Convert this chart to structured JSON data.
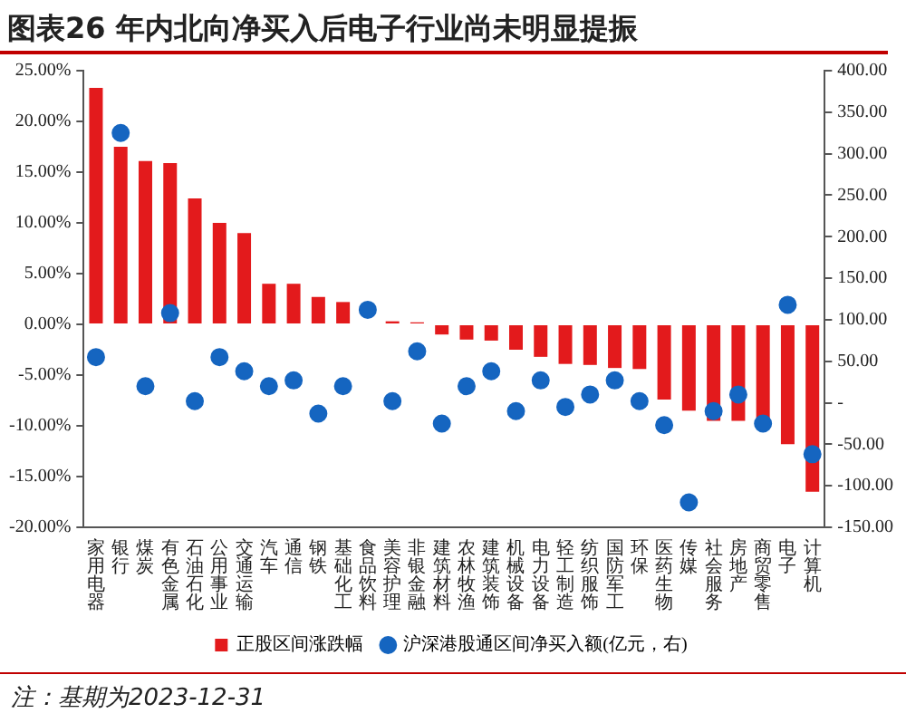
{
  "chart_data": {
    "type": "bar",
    "title": "图表26  年内北向净买入后电子行业尚未明显提振",
    "categories": [
      "家用电器",
      "银行",
      "煤炭",
      "有色金属",
      "石油石化",
      "公用事业",
      "交通运输",
      "汽车",
      "通信",
      "钢铁",
      "基础化工",
      "食品饮料",
      "美容护理",
      "非银金融",
      "建筑材料",
      "农林牧渔",
      "建筑装饰",
      "机械设备",
      "电力设备",
      "轻工制造",
      "纺织服饰",
      "国防军工",
      "环保",
      "医药生物",
      "传媒",
      "社会服务",
      "房地产",
      "商贸零售",
      "电子",
      "计算机"
    ],
    "series": [
      {
        "name": "正股区间涨跌幅",
        "color": "#e31a1c",
        "values": [
          23.3,
          17.5,
          16.1,
          15.9,
          12.4,
          10.0,
          9.0,
          4.0,
          4.0,
          2.7,
          2.2,
          null,
          0.3,
          0.2,
          -1.0,
          -1.5,
          -1.6,
          -2.5,
          -3.2,
          -3.9,
          -4.0,
          -4.3,
          -4.4,
          -7.4,
          -8.5,
          -9.5,
          -9.5,
          -9.3,
          -11.8,
          -16.5
        ]
      },
      {
        "name": "沪深港股通区间净买入额(亿元，右)",
        "type": "scatter",
        "axis": "y2",
        "color": "#1565c0",
        "values": [
          55,
          325,
          20,
          108,
          2,
          55,
          38,
          20,
          27,
          -13,
          20,
          112,
          2,
          62,
          -25,
          20,
          38,
          -10,
          27,
          -5,
          10,
          27,
          2,
          -27,
          -120,
          -10,
          10,
          -25,
          118,
          -62
        ]
      }
    ],
    "ylim": [
      -20,
      25
    ],
    "yticks": [
      {
        "value": -20,
        "label": "-20.00%"
      },
      {
        "value": -15,
        "label": "-15.00%"
      },
      {
        "value": -10,
        "label": "-10.00%"
      },
      {
        "value": -5,
        "label": "-5.00%"
      },
      {
        "value": 0,
        "label": "0.00%"
      },
      {
        "value": 5,
        "label": "5.00%"
      },
      {
        "value": 10,
        "label": "10.00%"
      },
      {
        "value": 15,
        "label": "15.00%"
      },
      {
        "value": 20,
        "label": "20.00%"
      },
      {
        "value": 25,
        "label": "25.00%"
      }
    ],
    "y2lim": [
      -150,
      400
    ],
    "y2ticks": [
      {
        "value": -150,
        "label": "-150.00"
      },
      {
        "value": -100,
        "label": "-100.00"
      },
      {
        "value": -50,
        "label": "-50.00"
      },
      {
        "value": 0,
        "label": "-"
      },
      {
        "value": 50,
        "label": "50.00"
      },
      {
        "value": 100,
        "label": "100.00"
      },
      {
        "value": 150,
        "label": "150.00"
      },
      {
        "value": 200,
        "label": "200.00"
      },
      {
        "value": 250,
        "label": "250.00"
      },
      {
        "value": 300,
        "label": "300.00"
      },
      {
        "value": 350,
        "label": "350.00"
      },
      {
        "value": 400,
        "label": "400.00"
      }
    ],
    "marker": "circle",
    "grid": false,
    "legend": "bottom",
    "annotations": [
      "注：基期为2023-12-31"
    ]
  }
}
